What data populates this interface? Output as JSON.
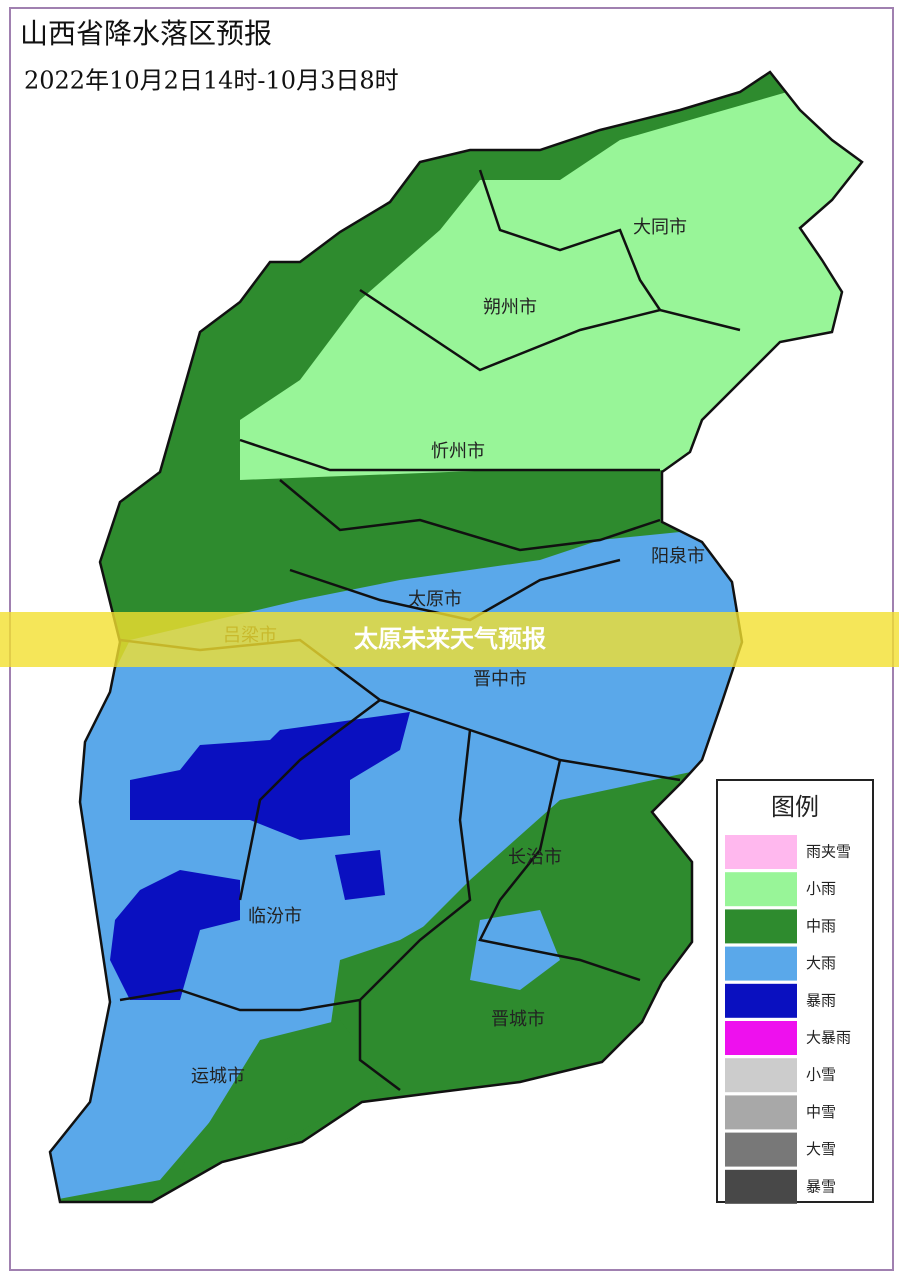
{
  "header": {
    "title": "山西省降水落区预报",
    "subtitle": "2022年10月2日14时-10月3日8时"
  },
  "cities": [
    "大同市",
    "朔州市",
    "忻州市",
    "阳泉市",
    "太原市",
    "吕梁市",
    "晋中市",
    "长治市",
    "临汾市",
    "晋城市",
    "运城市"
  ],
  "banner": "太原未来天气预报",
  "legend": {
    "title": "图例",
    "items": [
      {
        "label": "雨夹雪",
        "color": "#ffb8ee"
      },
      {
        "label": "小雨",
        "color": "#98f598"
      },
      {
        "label": "中雨",
        "color": "#2e8b2e"
      },
      {
        "label": "大雨",
        "color": "#5aa8ea"
      },
      {
        "label": "暴雨",
        "color": "#0a10c0"
      },
      {
        "label": "大暴雨",
        "color": "#ee10ee"
      },
      {
        "label": "小雪",
        "color": "#cccccc"
      },
      {
        "label": "中雪",
        "color": "#a8a8a8"
      },
      {
        "label": "大雪",
        "color": "#787878"
      },
      {
        "label": "暴雪",
        "color": "#484848"
      }
    ]
  }
}
